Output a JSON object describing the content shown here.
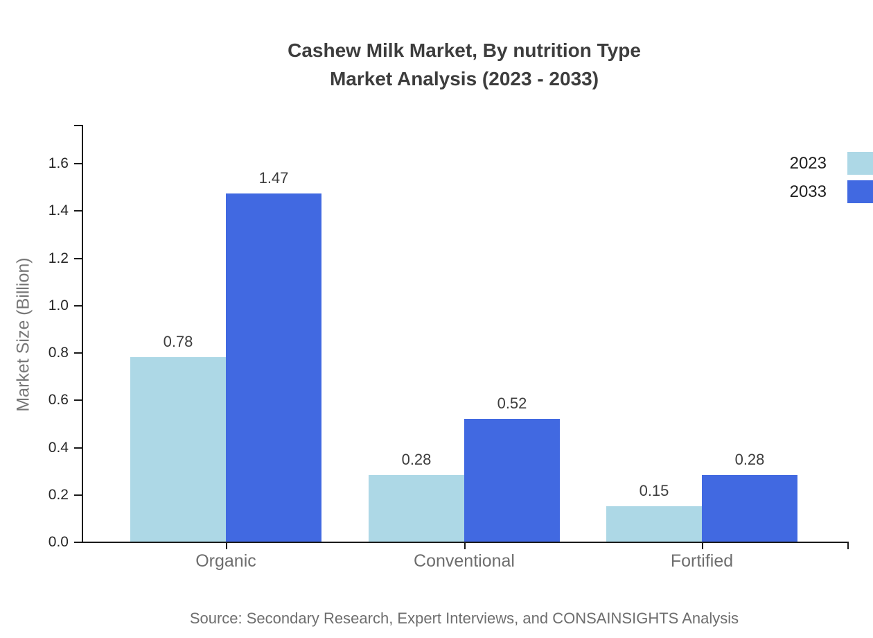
{
  "title": {
    "line1": "Cashew Milk Market, By nutrition Type",
    "line2": "Market Analysis (2023 - 2033)"
  },
  "source": "Source: Secondary Research, Expert Interviews, and CONSAINSIGHTS Analysis",
  "chart_data": {
    "type": "bar",
    "categories": [
      "Organic",
      "Conventional",
      "Fortified"
    ],
    "series": [
      {
        "name": "2023",
        "color": "#ADD8E6",
        "values": [
          0.78,
          0.28,
          0.15
        ]
      },
      {
        "name": "2033",
        "color": "#4169E1",
        "values": [
          1.47,
          0.52,
          0.28
        ]
      }
    ],
    "value_labels": [
      [
        "0.78",
        "0.28",
        "0.15"
      ],
      [
        "1.47",
        "0.52",
        "0.28"
      ]
    ],
    "title": "Cashew Milk Market, By nutrition Type Market Analysis (2023 - 2033)",
    "xlabel": "",
    "ylabel": "Market Size (Billion)",
    "ylim": [
      0,
      1.76
    ],
    "yticks": [
      0.0,
      0.2,
      0.4,
      0.6,
      0.8,
      1.0,
      1.2,
      1.4,
      1.6
    ],
    "grid": false,
    "legend_position": "top-right"
  },
  "colors": {
    "series_2023": "#ADD8E6",
    "series_2033": "#4169E1",
    "title_text": "#3D3D3D",
    "tick_text": "#262626",
    "muted_text": "#6E6E6E",
    "spine": "#1A1A1A",
    "background": "#FFFFFF"
  }
}
